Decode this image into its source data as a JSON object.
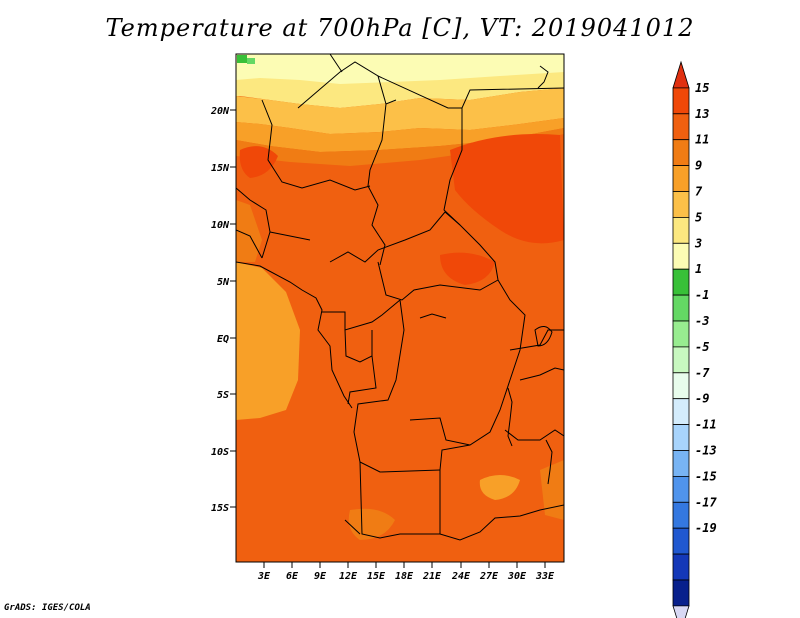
{
  "title": "Temperature at 700hPa [C], VT: 2019041012",
  "credit": "GrADS: IGES/COLA",
  "map": {
    "lat_ticks": [
      "20N",
      "15N",
      "10N",
      "5N",
      "EQ",
      "5S",
      "10S",
      "15S"
    ],
    "lon_ticks": [
      "3E",
      "6E",
      "9E",
      "12E",
      "15E",
      "18E",
      "21E",
      "24E",
      "27E",
      "30E",
      "33E"
    ]
  },
  "colorbar": {
    "labels": [
      "15",
      "13",
      "11",
      "9",
      "7",
      "5",
      "3",
      "1",
      "-1",
      "-3",
      "-5",
      "-7",
      "-9",
      "-11",
      "-13",
      "-15",
      "-17",
      "-19"
    ],
    "colors": [
      "#e03010",
      "#f04808",
      "#f06010",
      "#f07c14",
      "#f8a028",
      "#fcc048",
      "#fce880",
      "#fcfcb4",
      "#38c038",
      "#64d864",
      "#98ec90",
      "#c8f8c0",
      "#e8fcec",
      "#d4ecfc",
      "#a8d4fc",
      "#78b4f4",
      "#5094ec",
      "#3478e0",
      "#2058d0",
      "#1438b8",
      "#08208c",
      "#d8d8f4"
    ]
  }
}
